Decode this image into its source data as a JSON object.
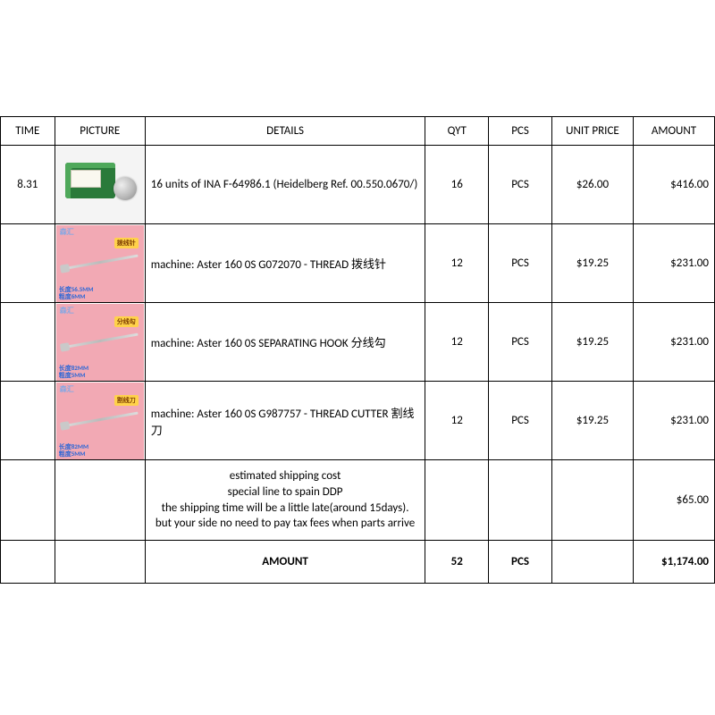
{
  "columns": {
    "time": "TIME",
    "picture": "PICTURE",
    "details": "DETAILS",
    "qyt": "QYT",
    "pcs": "PCS",
    "unit_price": "UNIT PRICE",
    "amount": "AMOUNT"
  },
  "rows": [
    {
      "time": "8.31",
      "details": "16 units of INA F-64986.1 (Heidelberg Ref. 00.550.0670/)",
      "qyt": "16",
      "pcs": "PCS",
      "unit_price": "$26.00",
      "amount": "$416.00",
      "thumb": {
        "kind": "bearing"
      }
    },
    {
      "time": "",
      "details": "machine: Aster 160 0S  G072070 - THREAD 拨线针",
      "qyt": "12",
      "pcs": "PCS",
      "unit_price": "$19.25",
      "amount": "$231.00",
      "thumb": {
        "kind": "pink",
        "yellow": "拨线针",
        "spec1": "长度56.5MM",
        "spec2": "粗度6MM"
      }
    },
    {
      "time": "",
      "details": "machine: Aster 160 0S  SEPARATING HOOK 分线勾",
      "qyt": "12",
      "pcs": "PCS",
      "unit_price": "$19.25",
      "amount": "$231.00",
      "thumb": {
        "kind": "pink",
        "yellow": "分线勾",
        "spec1": "长度82MM",
        "spec2": "粗度5MM"
      }
    },
    {
      "time": "",
      "details": "machine: Aster 160 0S  G987757 - THREAD CUTTER 割线刀",
      "qyt": "12",
      "pcs": "PCS",
      "unit_price": "$19.25",
      "amount": "$231.00",
      "thumb": {
        "kind": "pink",
        "yellow": "割线刀",
        "spec1": "长度82MM",
        "spec2": "粗度5MM"
      }
    }
  ],
  "shipping": {
    "line1": "estimated shipping cost",
    "line2": "special line to spain DDP",
    "line3": "the shipping time will be a little late(around 15days).",
    "line4": "but your side no need to pay tax fees when parts arrive",
    "amount": "$65.00"
  },
  "total": {
    "label": "AMOUNT",
    "qyt": "52",
    "pcs": "PCS",
    "amount": "$1,174.00"
  },
  "watermark": "森汇"
}
